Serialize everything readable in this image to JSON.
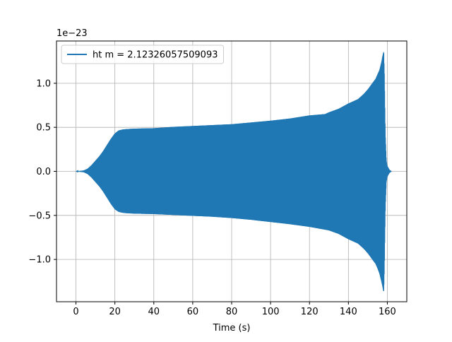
{
  "chart_data": {
    "type": "line",
    "title": "",
    "xlabel": "Time (s)",
    "ylabel": "",
    "y_offset_text": "1e−23",
    "xlim": [
      -10,
      170
    ],
    "ylim": [
      -1.48,
      1.48
    ],
    "x_ticks": [
      0,
      20,
      40,
      60,
      80,
      100,
      120,
      140,
      160
    ],
    "x_tick_labels": [
      "0",
      "20",
      "40",
      "60",
      "80",
      "100",
      "120",
      "140",
      "160"
    ],
    "y_ticks": [
      -1.0,
      -0.5,
      0.0,
      0.5,
      1.0
    ],
    "y_tick_labels": [
      "−1.0",
      "−0.5",
      "0.0",
      "0.5",
      "1.0"
    ],
    "grid": true,
    "legend_position": "upper-left",
    "series": [
      {
        "name": "ht m = 2.12326057509093",
        "color": "#1f77b4",
        "style": "oscillating-envelope",
        "upper_envelope": {
          "x": [
            0,
            2,
            4,
            6,
            8,
            10,
            12,
            14,
            16,
            18,
            20,
            22,
            24,
            26,
            30,
            40,
            50,
            60,
            70,
            80,
            90,
            100,
            110,
            120,
            128,
            130,
            135,
            140,
            145,
            148,
            150,
            152,
            154,
            155,
            156,
            157,
            157.5,
            158,
            158.2,
            158.5,
            158.7,
            159,
            159.5,
            160,
            160.5,
            161,
            161.5,
            162
          ],
          "y": [
            0.0,
            0.005,
            0.01,
            0.03,
            0.07,
            0.12,
            0.17,
            0.23,
            0.3,
            0.37,
            0.43,
            0.465,
            0.475,
            0.48,
            0.485,
            0.49,
            0.505,
            0.515,
            0.525,
            0.535,
            0.555,
            0.575,
            0.6,
            0.635,
            0.65,
            0.67,
            0.71,
            0.77,
            0.82,
            0.88,
            0.93,
            0.99,
            1.05,
            1.1,
            1.15,
            1.24,
            1.3,
            1.35,
            1.36,
            1.1,
            0.8,
            0.4,
            0.12,
            0.06,
            0.04,
            0.02,
            0.01,
            0.005
          ]
        },
        "lower_envelope": {
          "x": [
            0,
            2,
            4,
            6,
            8,
            10,
            12,
            14,
            16,
            18,
            20,
            22,
            24,
            26,
            30,
            40,
            50,
            60,
            70,
            80,
            90,
            100,
            110,
            120,
            130,
            135,
            140,
            145,
            148,
            150,
            152,
            154,
            155,
            156,
            157,
            157.5,
            158,
            158.2,
            158.5,
            158.7,
            159,
            159.5,
            160,
            160.5,
            161,
            161.5,
            162
          ],
          "y": [
            0.0,
            -0.005,
            -0.01,
            -0.03,
            -0.07,
            -0.12,
            -0.17,
            -0.23,
            -0.3,
            -0.37,
            -0.43,
            -0.46,
            -0.47,
            -0.475,
            -0.48,
            -0.485,
            -0.495,
            -0.505,
            -0.515,
            -0.53,
            -0.55,
            -0.575,
            -0.6,
            -0.63,
            -0.67,
            -0.71,
            -0.77,
            -0.82,
            -0.88,
            -0.93,
            -0.99,
            -1.05,
            -1.1,
            -1.16,
            -1.25,
            -1.3,
            -1.36,
            -1.36,
            -1.1,
            -0.8,
            -0.4,
            -0.12,
            -0.06,
            -0.04,
            -0.02,
            -0.01,
            -0.005
          ]
        }
      }
    ]
  }
}
